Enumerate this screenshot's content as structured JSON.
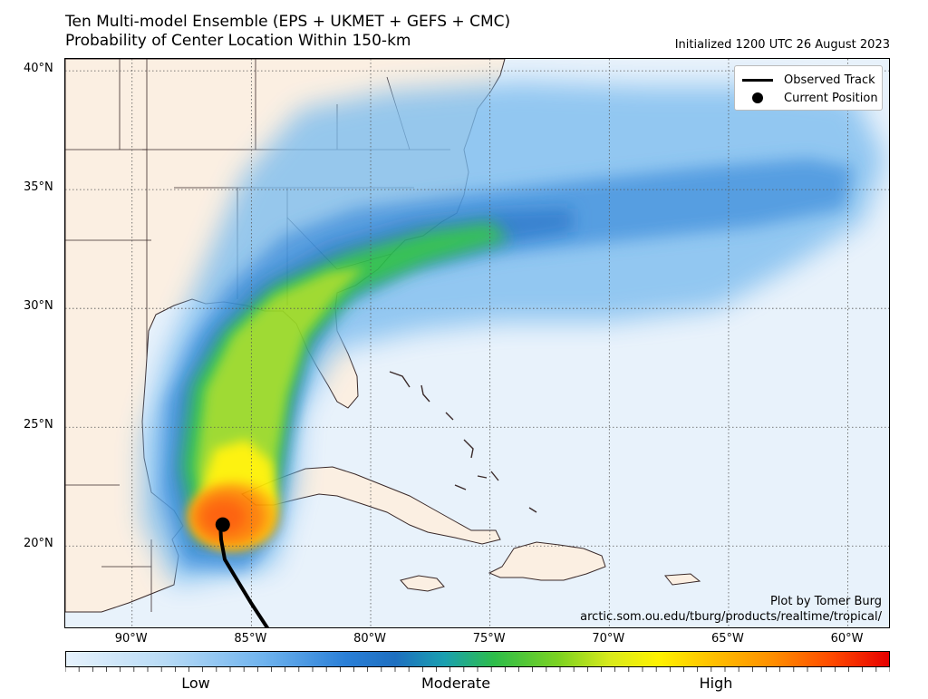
{
  "header": {
    "title_line1": "Ten Multi-model Ensemble (EPS + UKMET + GEFS + CMC)",
    "title_line2": "Probability of Center Location Within 150-km",
    "initialized": "Initialized 1200 UTC 26 August 2023"
  },
  "axes": {
    "lat_labels": [
      "40°N",
      "35°N",
      "30°N",
      "25°N",
      "20°N"
    ],
    "lon_labels": [
      "90°W",
      "85°W",
      "80°W",
      "75°W",
      "70°W",
      "65°W",
      "60°W"
    ],
    "lat_values": [
      40,
      35,
      30,
      25,
      20
    ],
    "lon_values": [
      -90,
      -85,
      -80,
      -75,
      -70,
      -65,
      -60
    ],
    "lat_range": [
      16.5,
      40.5
    ],
    "lon_range": [
      -92.8,
      -58.2
    ],
    "grid": true
  },
  "legend": {
    "observed_track": "Observed Track",
    "current_position": "Current Position"
  },
  "current_position": {
    "lat": 20.9,
    "lon": -86.2
  },
  "credits": {
    "line1": "Plot by Tomer Burg",
    "line2": "arctic.som.ou.edu/tburg/products/realtime/tropical/"
  },
  "colorbar": {
    "labels": [
      "Low",
      "Moderate",
      "High"
    ]
  },
  "colors": {
    "ocean": "#e8f2fb",
    "land": "#fbefe2",
    "track": "#000000"
  }
}
